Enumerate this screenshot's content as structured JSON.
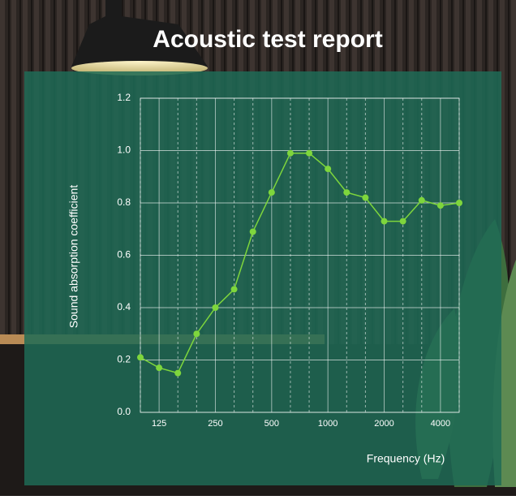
{
  "chart_data": {
    "type": "line",
    "title": "Acoustic test report",
    "xlabel": "Frequency (Hz)",
    "ylabel": "Sound absorption coefficient",
    "categories": [
      null,
      "125",
      null,
      null,
      "250",
      null,
      null,
      "500",
      null,
      null,
      "1000",
      null,
      null,
      "2000",
      null,
      null,
      "4000",
      null
    ],
    "values": [
      0.21,
      0.17,
      0.15,
      0.3,
      0.4,
      0.47,
      0.69,
      0.84,
      0.99,
      0.99,
      0.93,
      0.84,
      0.82,
      0.73,
      0.73,
      0.81,
      0.79,
      0.8
    ],
    "color": "#7ed63c",
    "ylim": [
      0,
      1.2
    ],
    "yticks": [
      {
        "value": 0,
        "label": "0.0"
      },
      0.2,
      0.4,
      0.6,
      0.8,
      {
        "value": 1,
        "label": "1.0"
      },
      1.2
    ],
    "grid": true
  }
}
